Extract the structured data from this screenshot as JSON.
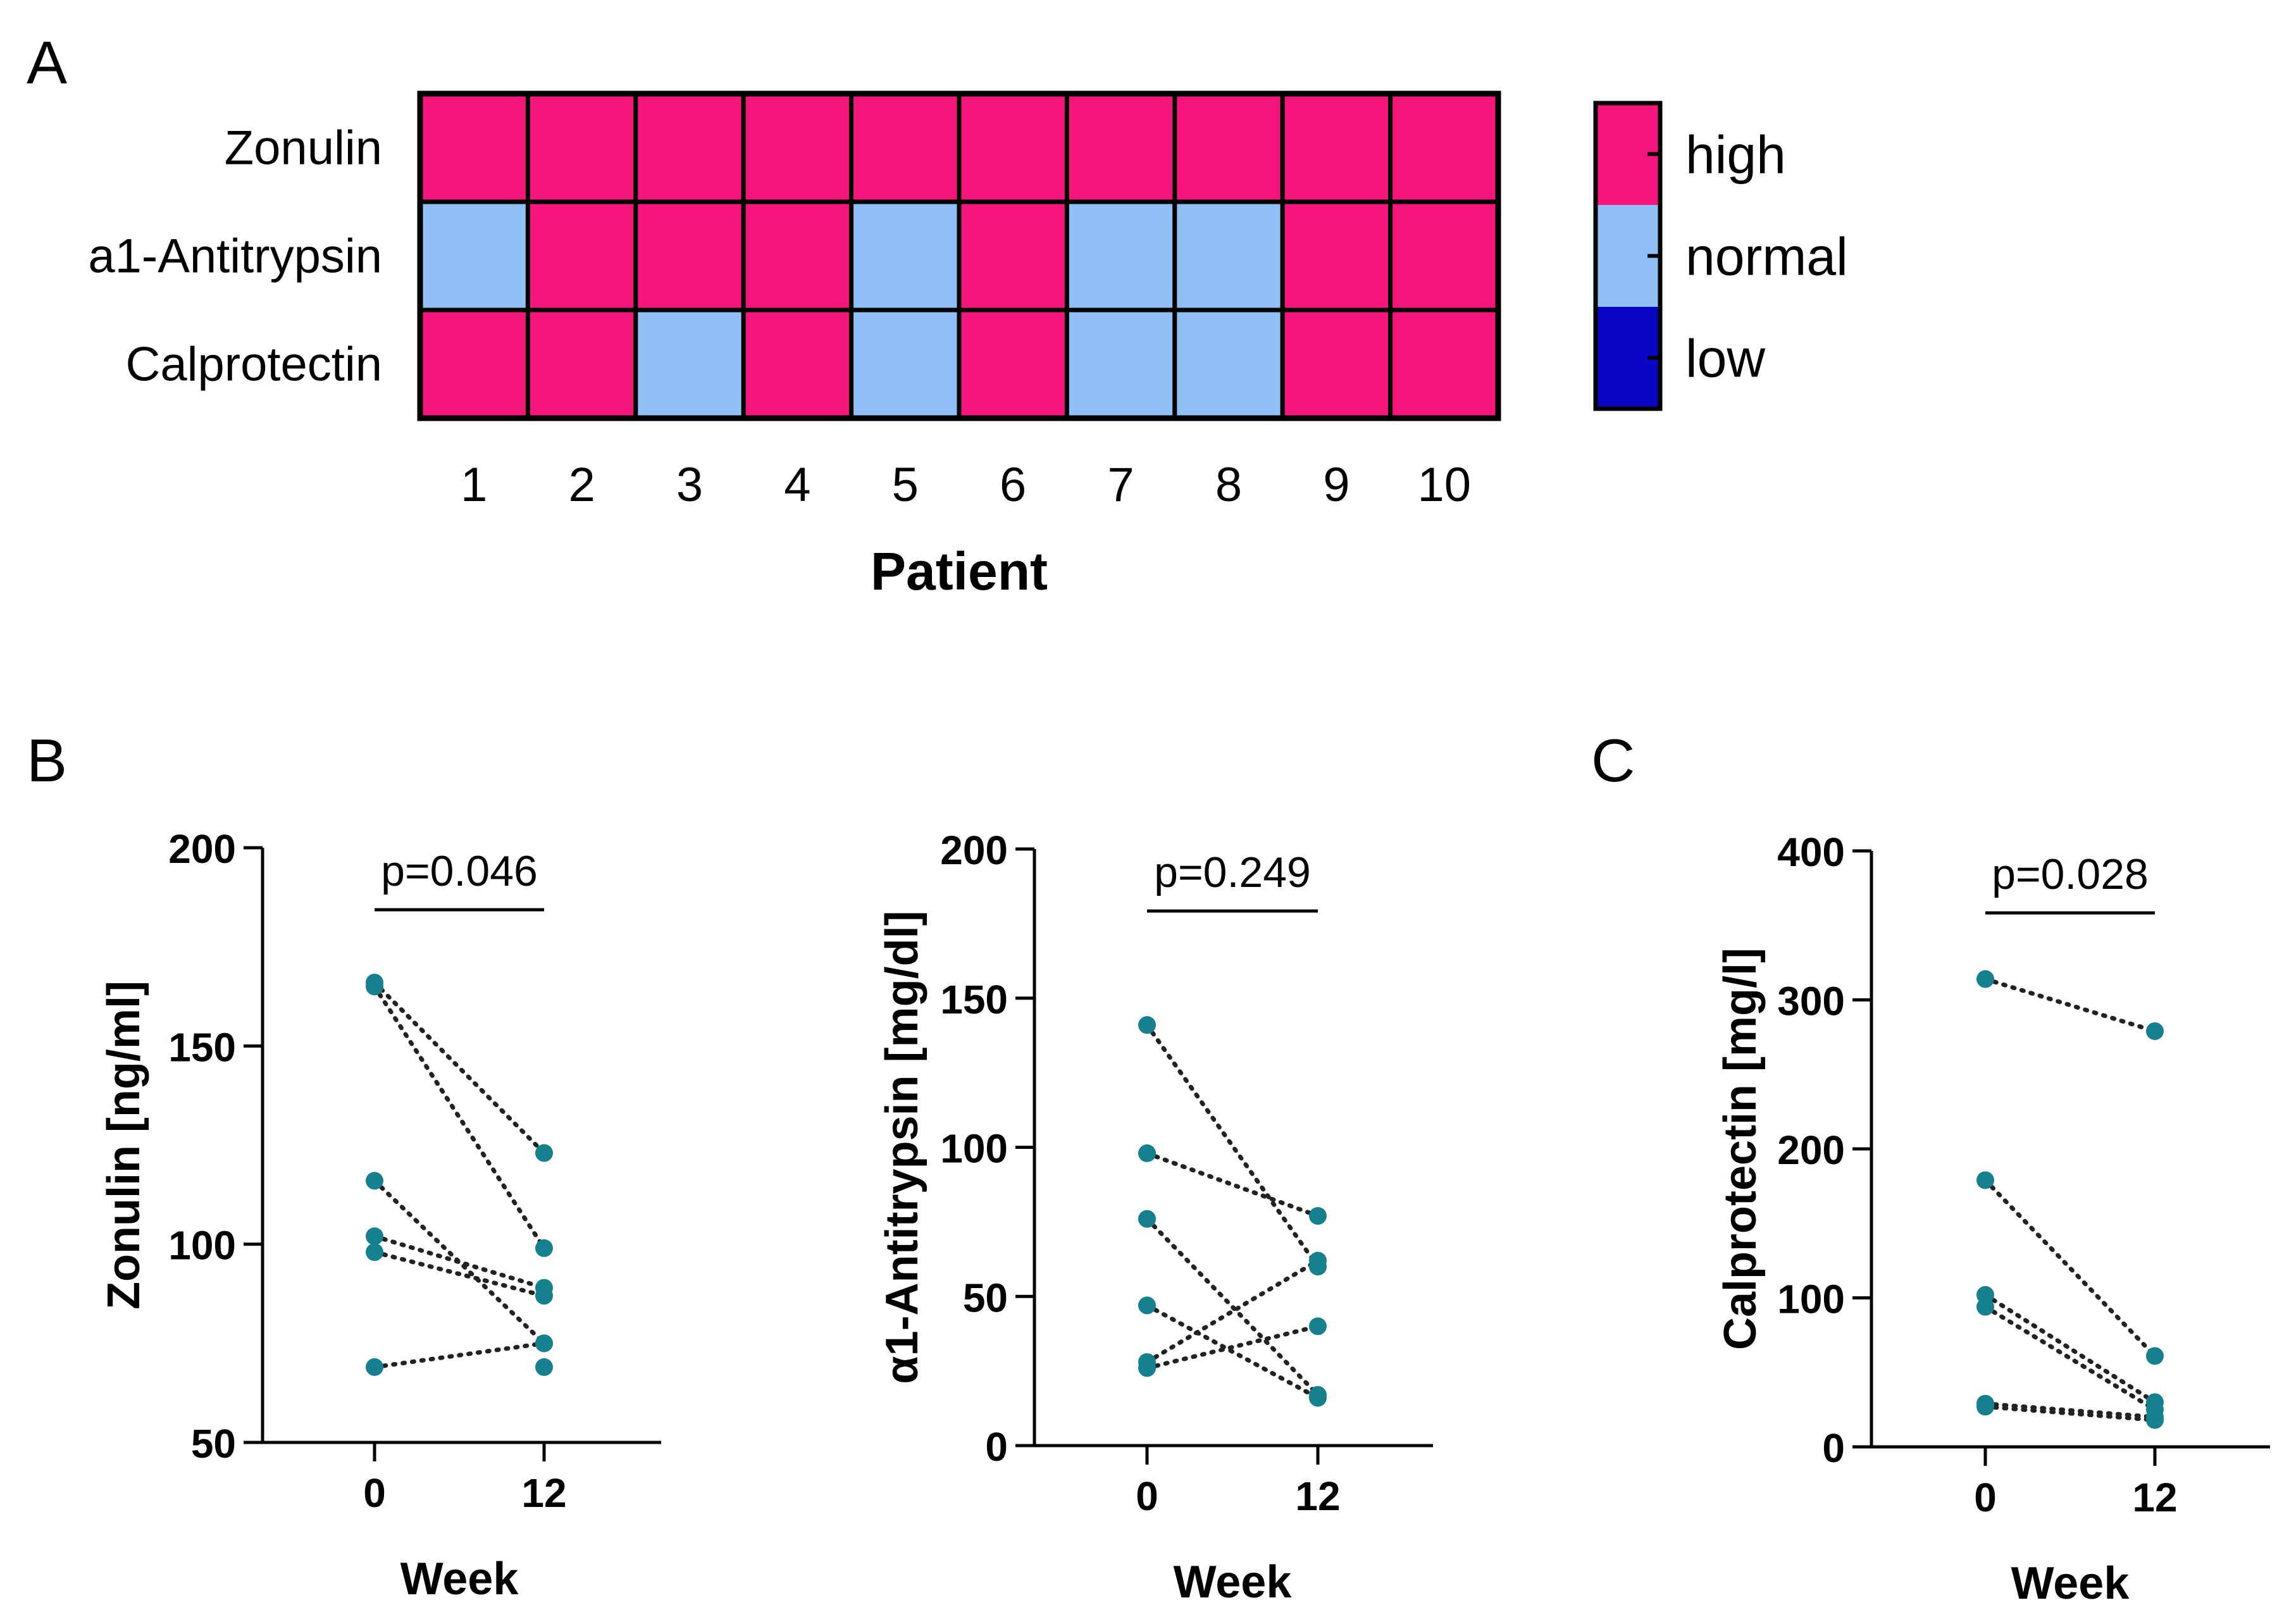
{
  "colors": {
    "high": "#f5167b",
    "normal": "#91c0f7",
    "low": "#0a07c4",
    "point": "#16808e",
    "border": "#000000"
  },
  "panel_labels": {
    "a": "A",
    "b": "B",
    "c": "C"
  },
  "chart_data": [
    {
      "type": "heatmap",
      "rows": [
        "Zonulin",
        "a1-Antitrypsin",
        "Calprotectin"
      ],
      "columns": [
        "1",
        "2",
        "3",
        "4",
        "5",
        "6",
        "7",
        "8",
        "9",
        "10"
      ],
      "values": [
        [
          "high",
          "high",
          "high",
          "high",
          "high",
          "high",
          "high",
          "high",
          "high",
          "high"
        ],
        [
          "normal",
          "high",
          "high",
          "high",
          "normal",
          "high",
          "normal",
          "normal",
          "high",
          "high"
        ],
        [
          "high",
          "high",
          "normal",
          "high",
          "normal",
          "high",
          "normal",
          "normal",
          "high",
          "high"
        ]
      ],
      "xlabel": "Patient",
      "legend": {
        "placement": "right",
        "entries": [
          "high",
          "normal",
          "low"
        ]
      }
    },
    {
      "type": "scatter",
      "ylabel": "Zonulin [ng/ml]",
      "xlabel": "Week",
      "x_categories": [
        "0",
        "12"
      ],
      "ylim": [
        50,
        200
      ],
      "yticks": [
        50,
        100,
        150,
        200
      ],
      "annotation": "p=0.046",
      "pairs": [
        {
          "week0": 166,
          "week12": 123
        },
        {
          "week0": 165,
          "week12": 99
        },
        {
          "week0": 116,
          "week12": 75
        },
        {
          "week0": 102,
          "week12": 89
        },
        {
          "week0": 98,
          "week12": 87
        },
        {
          "week0": 69,
          "week12": 75
        }
      ],
      "extra_points_week12": [
        69
      ]
    },
    {
      "type": "scatter",
      "ylabel": "α1-Antitrypsin [mg/dl]",
      "xlabel": "Week",
      "x_categories": [
        "0",
        "12"
      ],
      "ylim": [
        0,
        200
      ],
      "yticks": [
        0,
        50,
        100,
        150,
        200
      ],
      "annotation": "p=0.249",
      "pairs": [
        {
          "week0": 141,
          "week12": 60
        },
        {
          "week0": 98,
          "week12": 77
        },
        {
          "week0": 76,
          "week12": 17
        },
        {
          "week0": 47,
          "week12": 16
        },
        {
          "week0": 28,
          "week12": 62
        },
        {
          "week0": 26,
          "week12": 40
        }
      ]
    },
    {
      "type": "scatter",
      "ylabel": "Calprotectin [mg/l]",
      "xlabel": "Week",
      "x_categories": [
        "0",
        "12"
      ],
      "ylim": [
        0,
        400
      ],
      "yticks": [
        0,
        100,
        200,
        300,
        400
      ],
      "annotation": "p=0.028",
      "pairs": [
        {
          "week0": 314,
          "week12": 279
        },
        {
          "week0": 179,
          "week12": 61
        },
        {
          "week0": 102,
          "week12": 30
        },
        {
          "week0": 94,
          "week12": 25
        },
        {
          "week0": 29,
          "week12": 20
        },
        {
          "week0": 27,
          "week12": 18
        }
      ]
    }
  ]
}
